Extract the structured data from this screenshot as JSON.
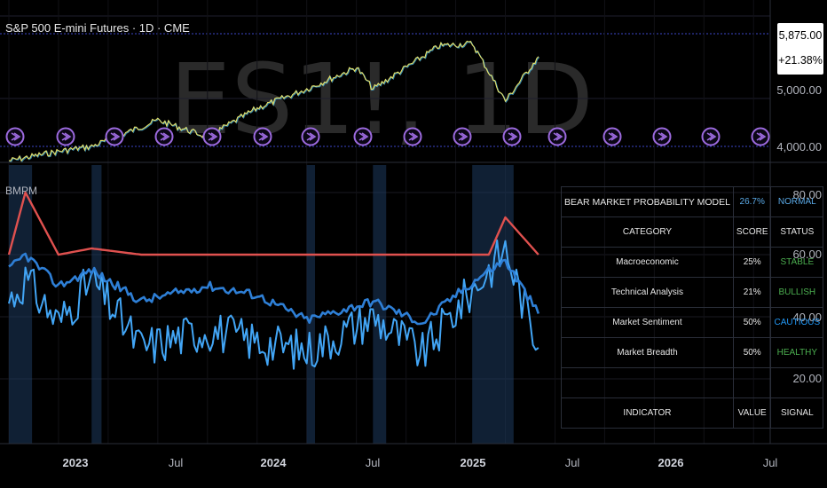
{
  "header": {
    "symbol_title": "S&P 500 E-mini Futures · 1D · CME",
    "watermark": "ES1!, 1D",
    "last_price": "5,875.00",
    "change_pct": "+21.38%"
  },
  "price_axis": [
    "5,000.00",
    "4,000.00"
  ],
  "indicator": {
    "name": "BMPM",
    "axis": [
      "80.00",
      "60.00",
      "40.00",
      "20.00"
    ]
  },
  "x_axis": [
    {
      "label": "2023",
      "bold": true
    },
    {
      "label": "Jul",
      "bold": false
    },
    {
      "label": "2024",
      "bold": true
    },
    {
      "label": "Jul",
      "bold": false
    },
    {
      "label": "2025",
      "bold": true
    },
    {
      "label": "Jul",
      "bold": false
    },
    {
      "label": "2026",
      "bold": true
    },
    {
      "label": "Jul",
      "bold": false
    }
  ],
  "table": {
    "title": "BEAR MARKET PROBABILITY MODEL",
    "probability": "26.7%",
    "overall_status": "NORMAL",
    "headers": [
      "CATEGORY",
      "SCORE",
      "STATUS"
    ],
    "rows": [
      {
        "category": "Macroeconomic",
        "score": "25%",
        "status": "STABLE",
        "color": "#4caf50"
      },
      {
        "category": "Technical Analysis",
        "score": "21%",
        "status": "BULLISH",
        "color": "#4caf50"
      },
      {
        "category": "Market Sentiment",
        "score": "50%",
        "status": "CAUTIOUS",
        "color": "#2196f3"
      },
      {
        "category": "Market Breadth",
        "score": "50%",
        "status": "HEALTHY",
        "color": "#4caf50"
      }
    ],
    "headers2": [
      "INDICATOR",
      "VALUE",
      "SIGNAL"
    ]
  },
  "colors": {
    "background": "#000000",
    "price_line": "#e8e36a",
    "price_line_alt": "#4fc3f7",
    "event_icon": "#9c6ade",
    "threshold_line": "#e0514f",
    "mid_line": "#2e7fd6",
    "osc_top": "#42a5f5",
    "osc_bottom": "#4db6ac",
    "highlight_band": "#1e3a5f",
    "probability_text": "#5aa9e6",
    "normal_text": "#5aa9e6"
  },
  "chart_data": [
    {
      "type": "line",
      "title": "S&P 500 E-mini Futures · 1D · CME",
      "x": [
        "2022-10",
        "2023-01",
        "2023-03",
        "2023-07",
        "2023-10",
        "2024-01",
        "2024-04",
        "2024-07",
        "2024-08",
        "2024-12",
        "2025-02",
        "2025-04",
        "2025-06"
      ],
      "series": [
        {
          "values": [
            3700,
            3900,
            4000,
            4550,
            4200,
            4800,
            5200,
            5650,
            5200,
            6100,
            6150,
            4950,
            5875
          ]
        }
      ],
      "ylim": [
        3600,
        6300
      ]
    },
    {
      "type": "line",
      "title": "BMPM",
      "x": [
        "2022-10",
        "2022-11",
        "2023-01",
        "2023-03",
        "2023-06",
        "2023-10",
        "2024-01",
        "2024-04",
        "2024-08",
        "2024-11",
        "2025-01",
        "2025-03",
        "2025-04",
        "2025-06"
      ],
      "series": [
        {
          "values": [
            45,
            52,
            38,
            52,
            30,
            36,
            32,
            29,
            40,
            28,
            42,
            55,
            62,
            30
          ]
        },
        {
          "values": [
            55,
            60,
            50,
            55,
            45,
            50,
            47,
            39,
            45,
            38,
            47,
            55,
            58,
            41
          ]
        },
        {
          "values": [
            60,
            80,
            60,
            62,
            60,
            60,
            60,
            60,
            60,
            60,
            60,
            60,
            72,
            60
          ]
        }
      ],
      "ylim": [
        0,
        90
      ]
    }
  ]
}
